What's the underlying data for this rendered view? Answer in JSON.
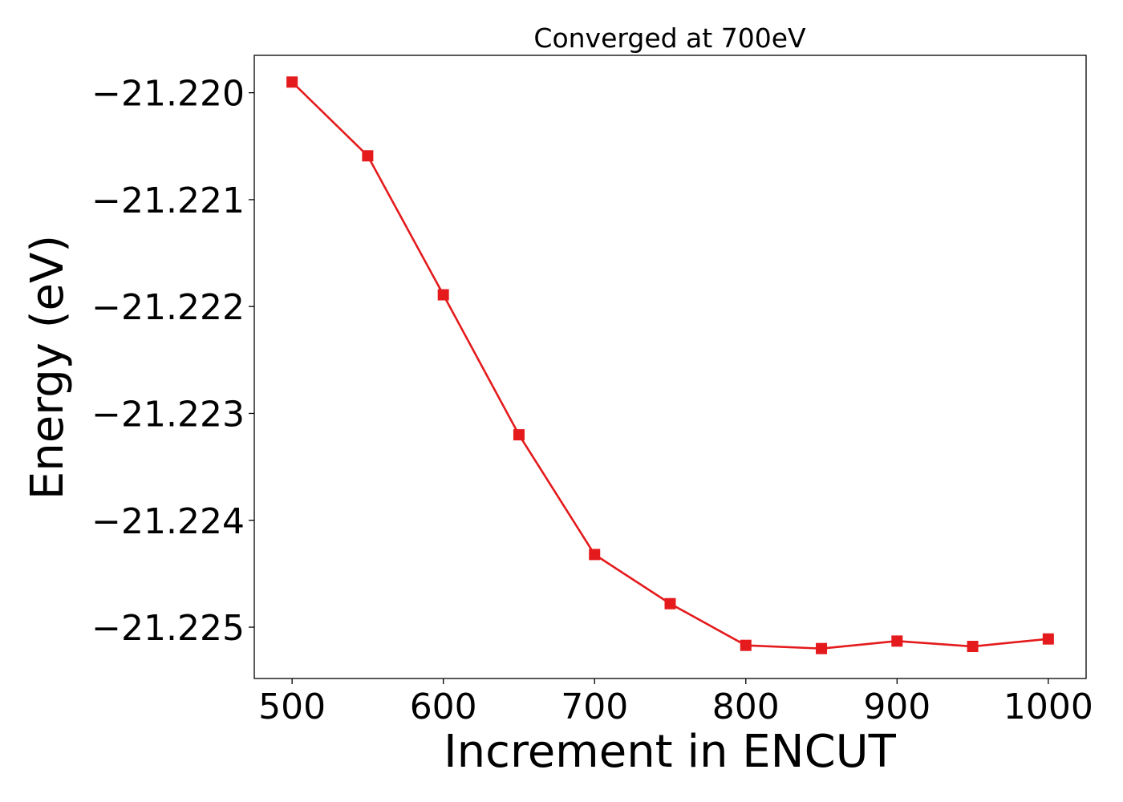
{
  "chart_data": {
    "type": "line",
    "title": "Converged at 700eV",
    "xlabel": "Increment in ENCUT",
    "ylabel": "Energy (eV)",
    "xlim": [
      475,
      1025
    ],
    "ylim": [
      -21.22548,
      -21.21965
    ],
    "x_ticks": [
      500,
      600,
      700,
      800,
      900,
      1000
    ],
    "x_tick_labels": [
      "500",
      "600",
      "700",
      "800",
      "900",
      "1000"
    ],
    "y_ticks": [
      -21.22,
      -21.221,
      -21.222,
      -21.223,
      -21.224,
      -21.225
    ],
    "y_tick_labels": [
      "−21.220",
      "−21.221",
      "−21.222",
      "−21.223",
      "−21.224",
      "−21.225"
    ],
    "grid": false,
    "series": [
      {
        "color": "#e41a1c",
        "marker": "square",
        "x": [
          500,
          550,
          600,
          650,
          700,
          750,
          800,
          850,
          900,
          950,
          1000
        ],
        "y": [
          -21.2199,
          -21.22059,
          -21.22189,
          -21.2232,
          -21.22432,
          -21.22478,
          -21.22517,
          -21.2252,
          -21.22513,
          -21.22518,
          -21.22511
        ]
      }
    ]
  }
}
